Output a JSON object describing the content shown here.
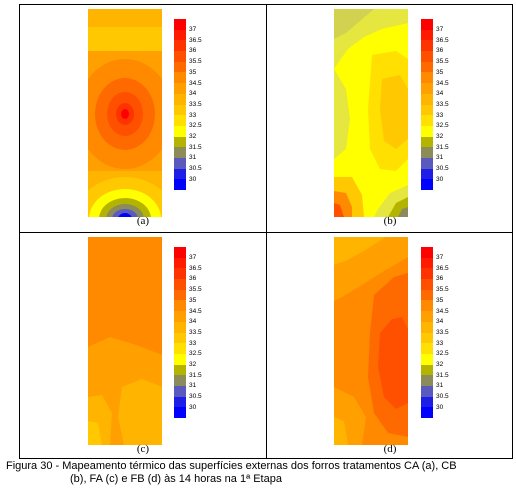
{
  "legend": {
    "labels": [
      "37",
      "36.5",
      "36",
      "35.5",
      "35",
      "34.5",
      "34",
      "33.5",
      "33",
      "32.5",
      "32",
      "31.5",
      "31",
      "30.5",
      "30"
    ],
    "colors": [
      "#ff0000",
      "#ff1a00",
      "#ff3300",
      "#ff5000",
      "#ff6a00",
      "#ff8a00",
      "#ffa000",
      "#ffb400",
      "#ffc800",
      "#ffe000",
      "#ffff00",
      "#b4b400",
      "#8c8c5a",
      "#5a5abe",
      "#1e1ee6",
      "#0000ff"
    ]
  },
  "panels": [
    {
      "label": "(a)"
    },
    {
      "label": "(b)"
    },
    {
      "label": "(c)"
    },
    {
      "label": "(d)"
    }
  ],
  "caption": {
    "line1": "Figura 30 - Mapeamento térmico das superfícies externas dos forros tratamentos CA (a), CB",
    "line2": "(b), FA (c) e FB (d) às 14 horas na 1ª Etapa"
  }
}
